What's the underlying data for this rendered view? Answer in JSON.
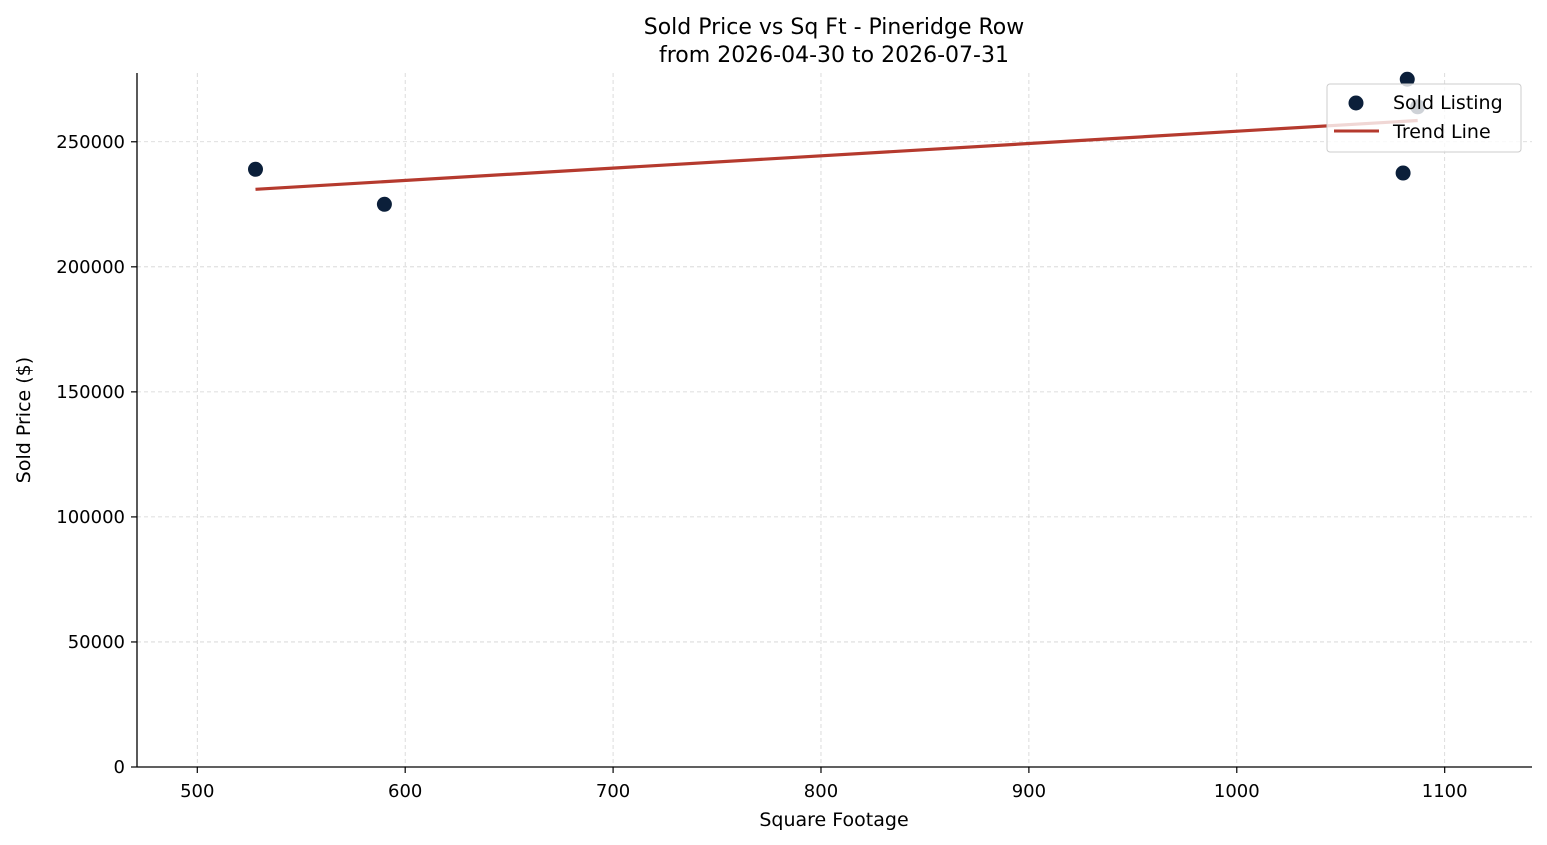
{
  "chart_data": {
    "type": "scatter",
    "title": "Sold Price vs Sq Ft - Pineridge Row",
    "subtitle": "from 2026-04-30 to 2026-07-31",
    "xlabel": "Square Footage",
    "ylabel": "Sold Price ($)",
    "xlim": [
      471,
      1142
    ],
    "ylim": [
      0,
      277500
    ],
    "xticks": [
      500,
      600,
      700,
      800,
      900,
      1000,
      1100
    ],
    "yticks": [
      0,
      50000,
      100000,
      150000,
      200000,
      250000
    ],
    "grid": true,
    "legend_position": "top-right",
    "series": [
      {
        "name": "Sold Listing",
        "kind": "scatter",
        "color": "#0b1f3a",
        "points": [
          {
            "x": 528,
            "y": 239000
          },
          {
            "x": 590,
            "y": 225000
          },
          {
            "x": 1080,
            "y": 237500
          },
          {
            "x": 1082,
            "y": 275000
          },
          {
            "x": 1087,
            "y": 264000
          }
        ]
      },
      {
        "name": "Trend Line",
        "kind": "line",
        "color": "#b53a2e",
        "points": [
          {
            "x": 528,
            "y": 231000
          },
          {
            "x": 1087,
            "y": 258500
          }
        ]
      }
    ]
  }
}
